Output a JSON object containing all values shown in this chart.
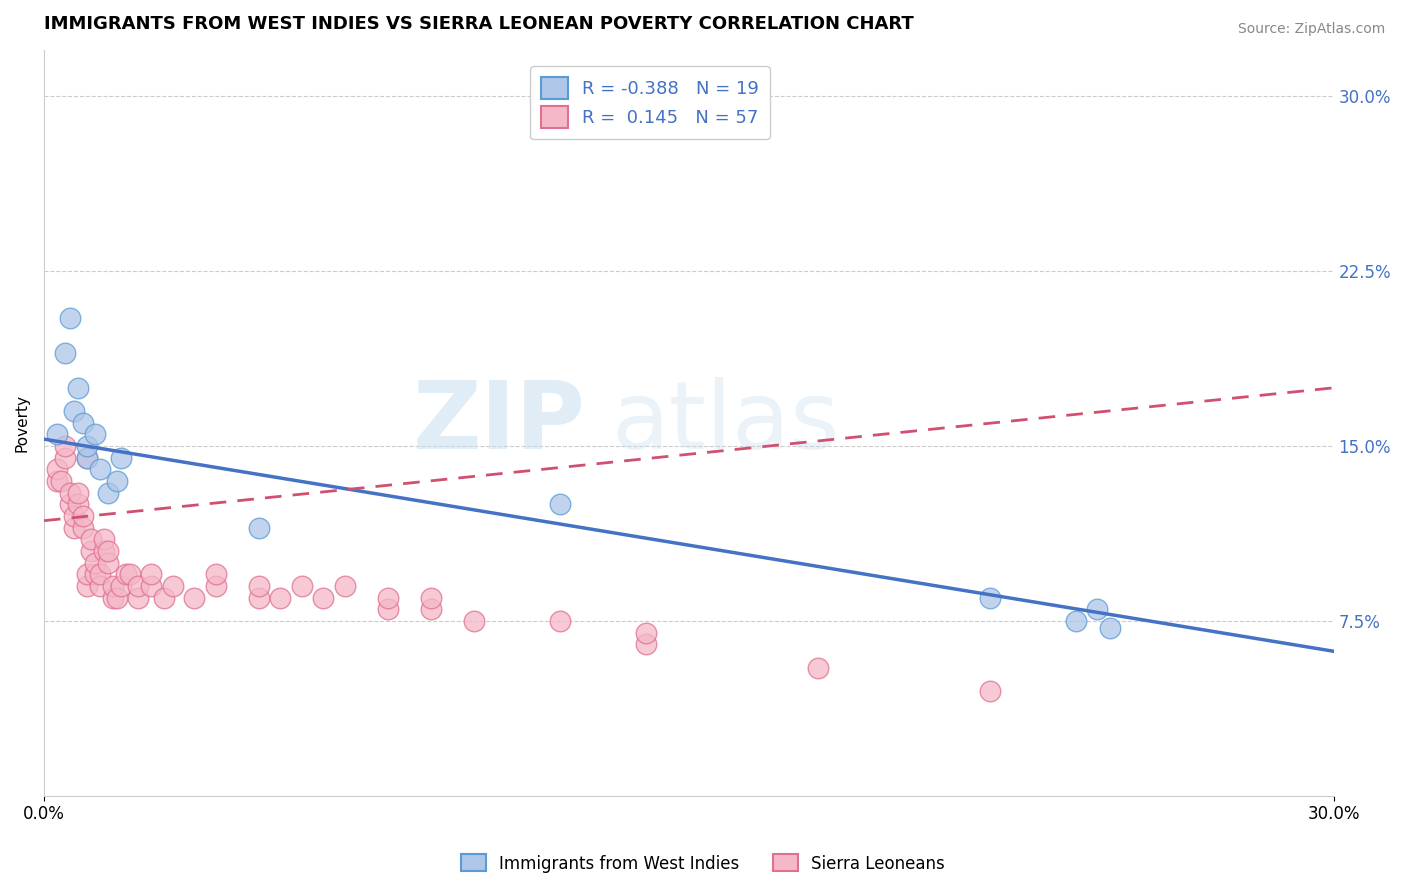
{
  "title": "IMMIGRANTS FROM WEST INDIES VS SIERRA LEONEAN POVERTY CORRELATION CHART",
  "source": "Source: ZipAtlas.com",
  "ylabel": "Poverty",
  "xlim": [
    0.0,
    0.3
  ],
  "ylim": [
    0.0,
    0.32
  ],
  "y_ticks_right": [
    0.075,
    0.15,
    0.225,
    0.3
  ],
  "y_tick_labels_right": [
    "7.5%",
    "15.0%",
    "22.5%",
    "30.0%"
  ],
  "blue_R": -0.388,
  "blue_N": 19,
  "pink_R": 0.145,
  "pink_N": 57,
  "blue_color": "#aec6e8",
  "blue_edge_color": "#5b9bd5",
  "blue_line_color": "#4472c4",
  "pink_color": "#f4b8c8",
  "pink_edge_color": "#e07090",
  "pink_line_color": "#d05070",
  "watermark_zip": "ZIP",
  "watermark_atlas": "atlas",
  "legend_label_blue": "Immigrants from West Indies",
  "legend_label_pink": "Sierra Leoneans",
  "blue_x": [
    0.003,
    0.005,
    0.006,
    0.007,
    0.008,
    0.009,
    0.01,
    0.01,
    0.012,
    0.013,
    0.015,
    0.017,
    0.018,
    0.05,
    0.12,
    0.22,
    0.24,
    0.245,
    0.248
  ],
  "blue_y": [
    0.155,
    0.19,
    0.205,
    0.165,
    0.175,
    0.16,
    0.145,
    0.15,
    0.155,
    0.14,
    0.13,
    0.135,
    0.145,
    0.115,
    0.125,
    0.085,
    0.075,
    0.08,
    0.072
  ],
  "pink_x": [
    0.003,
    0.003,
    0.004,
    0.005,
    0.005,
    0.006,
    0.006,
    0.007,
    0.007,
    0.008,
    0.008,
    0.009,
    0.009,
    0.01,
    0.01,
    0.01,
    0.011,
    0.011,
    0.012,
    0.012,
    0.013,
    0.013,
    0.014,
    0.014,
    0.015,
    0.015,
    0.016,
    0.016,
    0.017,
    0.018,
    0.019,
    0.02,
    0.022,
    0.022,
    0.025,
    0.025,
    0.028,
    0.03,
    0.035,
    0.04,
    0.04,
    0.05,
    0.05,
    0.055,
    0.06,
    0.065,
    0.07,
    0.08,
    0.08,
    0.09,
    0.09,
    0.1,
    0.12,
    0.14,
    0.14,
    0.18,
    0.22
  ],
  "pink_y": [
    0.135,
    0.14,
    0.135,
    0.145,
    0.15,
    0.125,
    0.13,
    0.115,
    0.12,
    0.125,
    0.13,
    0.115,
    0.12,
    0.09,
    0.095,
    0.145,
    0.105,
    0.11,
    0.095,
    0.1,
    0.09,
    0.095,
    0.105,
    0.11,
    0.1,
    0.105,
    0.085,
    0.09,
    0.085,
    0.09,
    0.095,
    0.095,
    0.085,
    0.09,
    0.09,
    0.095,
    0.085,
    0.09,
    0.085,
    0.09,
    0.095,
    0.085,
    0.09,
    0.085,
    0.09,
    0.085,
    0.09,
    0.08,
    0.085,
    0.08,
    0.085,
    0.075,
    0.075,
    0.065,
    0.07,
    0.055,
    0.045
  ],
  "bg_color": "#ffffff",
  "grid_color": "#cccccc",
  "title_fontsize": 13,
  "axis_label_fontsize": 11,
  "blue_line_x0": 0.0,
  "blue_line_y0": 0.153,
  "blue_line_x1": 0.3,
  "blue_line_y1": 0.062,
  "pink_line_x0": 0.0,
  "pink_line_y0": 0.118,
  "pink_line_x1": 0.3,
  "pink_line_y1": 0.175
}
